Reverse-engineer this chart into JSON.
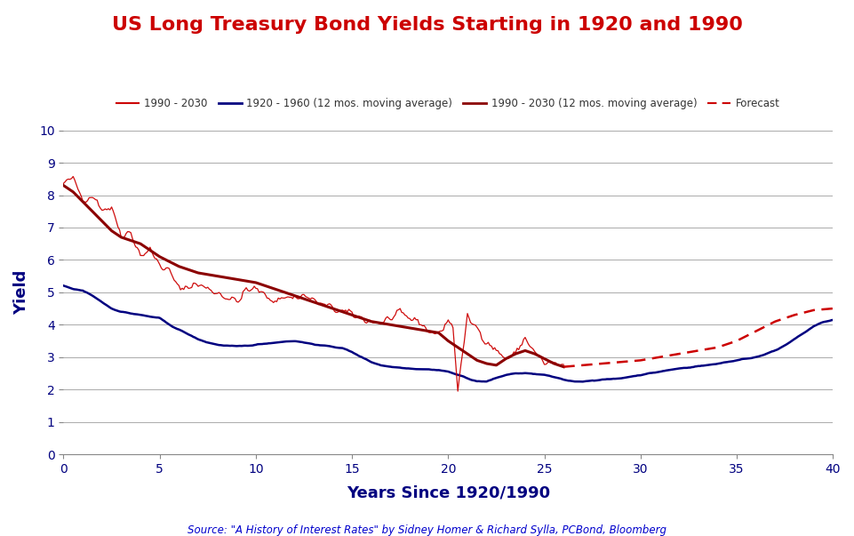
{
  "title": "US Long Treasury Bond Yields Starting in 1920 and 1990",
  "title_color": "#CC0000",
  "xlabel": "Years Since 1920/1990",
  "ylabel": "Yield",
  "source": "Source: \"A History of Interest Rates\" by Sidney Homer & Richard Sylla, PCBond, Bloomberg",
  "xlim": [
    0,
    40
  ],
  "ylim": [
    0,
    10
  ],
  "xticks": [
    0,
    5,
    10,
    15,
    20,
    25,
    30,
    35,
    40
  ],
  "yticks": [
    0,
    1,
    2,
    3,
    4,
    5,
    6,
    7,
    8,
    9,
    10
  ],
  "legend_entries": [
    "1990 - 2030",
    "1920 - 1960 (12 mos. moving average)",
    "1990 - 2030 (12 mos. moving average)",
    "Forecast"
  ],
  "color_red_raw": "#CC0000",
  "color_blue_ma": "#000080",
  "color_red_ma": "#8B0000",
  "color_forecast": "#CC0000",
  "color_title": "#CC0000",
  "color_labels": "#000080",
  "color_source": "#0000CC",
  "color_grid": "#AAAAAA",
  "color_background": "#FFFFFF",
  "blue_ma_x": [
    0,
    0.5,
    1,
    1.5,
    2,
    2.5,
    3,
    3.5,
    4,
    4.5,
    5,
    5.5,
    6,
    6.5,
    7,
    7.5,
    8,
    8.5,
    9,
    9.5,
    10,
    10.5,
    11,
    11.5,
    12,
    12.5,
    13,
    13.5,
    14,
    14.5,
    15,
    15.5,
    16,
    16.5,
    17,
    17.5,
    18,
    18.5,
    19,
    19.5,
    20,
    20.5,
    21,
    21.5,
    22,
    22.5,
    23,
    23.5,
    24,
    24.5,
    25,
    25.5,
    26,
    26.5,
    27,
    27.5,
    28,
    28.5,
    29,
    29.5,
    30,
    30.5,
    31,
    31.5,
    32,
    32.5,
    33,
    33.5,
    34,
    34.5,
    35,
    35.5,
    36,
    36.5,
    37,
    37.5,
    38,
    38.5,
    39,
    39.5,
    40
  ],
  "blue_ma_y": [
    5.2,
    5.1,
    5.05,
    4.9,
    4.7,
    4.5,
    4.4,
    4.35,
    4.3,
    4.25,
    4.2,
    4.0,
    3.85,
    3.7,
    3.55,
    3.45,
    3.38,
    3.35,
    3.33,
    3.35,
    3.38,
    3.42,
    3.45,
    3.48,
    3.5,
    3.45,
    3.4,
    3.35,
    3.32,
    3.28,
    3.15,
    3.0,
    2.85,
    2.75,
    2.7,
    2.68,
    2.65,
    2.63,
    2.62,
    2.6,
    2.55,
    2.45,
    2.35,
    2.25,
    2.25,
    2.35,
    2.45,
    2.5,
    2.5,
    2.48,
    2.45,
    2.38,
    2.3,
    2.25,
    2.25,
    2.28,
    2.3,
    2.32,
    2.35,
    2.4,
    2.45,
    2.5,
    2.55,
    2.6,
    2.65,
    2.68,
    2.72,
    2.75,
    2.8,
    2.85,
    2.9,
    2.95,
    3.0,
    3.1,
    3.2,
    3.35,
    3.55,
    3.75,
    3.95,
    4.08,
    4.15
  ],
  "red_ma_x": [
    0,
    0.5,
    1,
    1.5,
    2,
    2.5,
    3,
    3.5,
    4,
    4.5,
    5,
    5.5,
    6,
    6.5,
    7,
    7.5,
    8,
    8.5,
    9,
    9.5,
    10,
    10.5,
    11,
    11.5,
    12,
    12.5,
    13,
    13.5,
    14,
    14.5,
    15,
    15.5,
    16,
    16.5,
    17,
    17.5,
    18,
    18.5,
    19,
    19.5,
    20,
    20.5,
    21,
    21.5,
    22,
    22.5,
    23,
    23.5,
    24,
    24.5,
    25,
    25.5,
    26
  ],
  "red_ma_y": [
    8.3,
    8.1,
    7.8,
    7.5,
    7.2,
    6.9,
    6.7,
    6.6,
    6.5,
    6.3,
    6.1,
    5.95,
    5.8,
    5.7,
    5.6,
    5.55,
    5.5,
    5.45,
    5.4,
    5.35,
    5.3,
    5.2,
    5.1,
    5.0,
    4.9,
    4.8,
    4.7,
    4.6,
    4.5,
    4.4,
    4.3,
    4.2,
    4.1,
    4.05,
    4.0,
    3.95,
    3.9,
    3.85,
    3.8,
    3.75,
    3.5,
    3.3,
    3.1,
    2.9,
    2.8,
    2.75,
    2.95,
    3.1,
    3.2,
    3.1,
    2.95,
    2.8,
    2.7
  ],
  "forecast_x": [
    26,
    27,
    28,
    29,
    30,
    31,
    32,
    33,
    34,
    35,
    36,
    37,
    38,
    39,
    40
  ],
  "forecast_y": [
    2.7,
    2.75,
    2.8,
    2.85,
    2.9,
    3.0,
    3.1,
    3.2,
    3.3,
    3.5,
    3.8,
    4.1,
    4.3,
    4.45,
    4.5
  ],
  "red_raw_key_x": [
    0,
    0.5,
    1,
    1.5,
    2,
    2.5,
    3,
    3.5,
    4,
    4.5,
    5,
    5.5,
    6,
    6.5,
    7,
    7.5,
    8,
    8.5,
    9,
    9.5,
    10,
    10.5,
    11,
    11.5,
    12,
    12.5,
    13,
    13.5,
    14,
    14.5,
    15,
    15.5,
    16,
    16.5,
    17,
    17.5,
    18,
    18.5,
    19,
    19.5,
    20,
    20.25,
    20.5,
    20.75,
    21,
    21.5,
    22,
    22.5,
    23,
    23.5,
    24,
    24.5,
    25,
    25.5,
    26
  ],
  "red_raw_key_y": [
    8.35,
    8.5,
    7.9,
    8.0,
    7.6,
    7.6,
    6.8,
    6.85,
    6.15,
    6.3,
    5.85,
    5.65,
    5.1,
    5.2,
    5.25,
    5.1,
    5.0,
    4.85,
    4.7,
    5.05,
    5.1,
    4.9,
    4.75,
    4.85,
    4.85,
    4.9,
    4.75,
    4.6,
    4.5,
    4.4,
    4.3,
    4.2,
    4.1,
    4.05,
    4.2,
    4.3,
    4.2,
    4.1,
    3.8,
    3.7,
    4.15,
    3.9,
    2.0,
    3.1,
    4.2,
    3.9,
    3.5,
    3.2,
    2.95,
    3.1,
    3.6,
    3.15,
    2.8,
    2.8,
    2.7
  ]
}
